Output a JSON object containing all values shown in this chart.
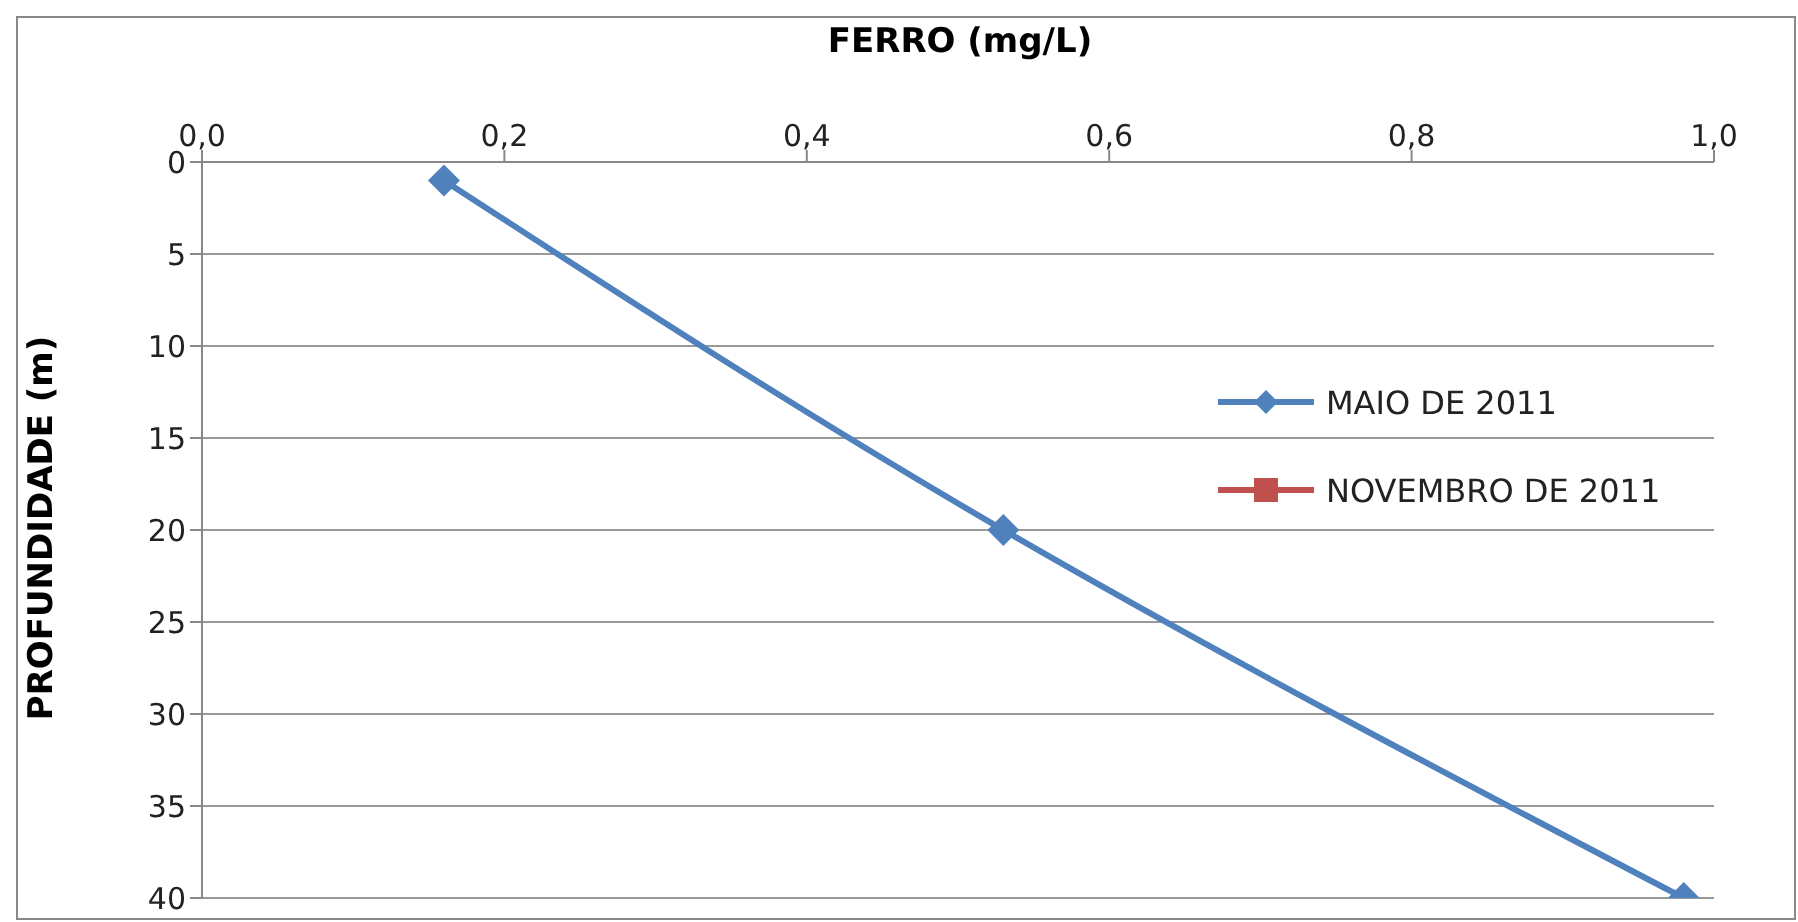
{
  "chart_data": {
    "type": "line",
    "orientation": "horizontal",
    "xlabel": "FERRO (mg/L)",
    "ylabel": "PROFUNDIDADE (m)",
    "x": [
      1,
      20,
      40
    ],
    "series": [
      {
        "name": "MAIO DE 2011",
        "color": "#4f81bd",
        "values": [
          0.16,
          0.53,
          0.98
        ],
        "marker": "diamond"
      },
      {
        "name": "NOVEMBRO DE 2011",
        "color": "#c0504d",
        "values": [
          null,
          null,
          null
        ],
        "marker": "square"
      }
    ],
    "xlim": [
      0,
      1
    ],
    "xticks": [
      {
        "value": 0,
        "label": "0,0"
      },
      {
        "value": 0.2,
        "label": "0,2"
      },
      {
        "value": 0.4,
        "label": "0,4"
      },
      {
        "value": 0.6,
        "label": "0,6"
      },
      {
        "value": 0.8,
        "label": "0,8"
      },
      {
        "value": 1,
        "label": "1,0"
      }
    ],
    "ylim": [
      40,
      0
    ],
    "yticks": [
      0,
      5,
      10,
      15,
      20,
      25,
      30,
      35,
      40
    ],
    "grid": "y",
    "legend": "right"
  }
}
